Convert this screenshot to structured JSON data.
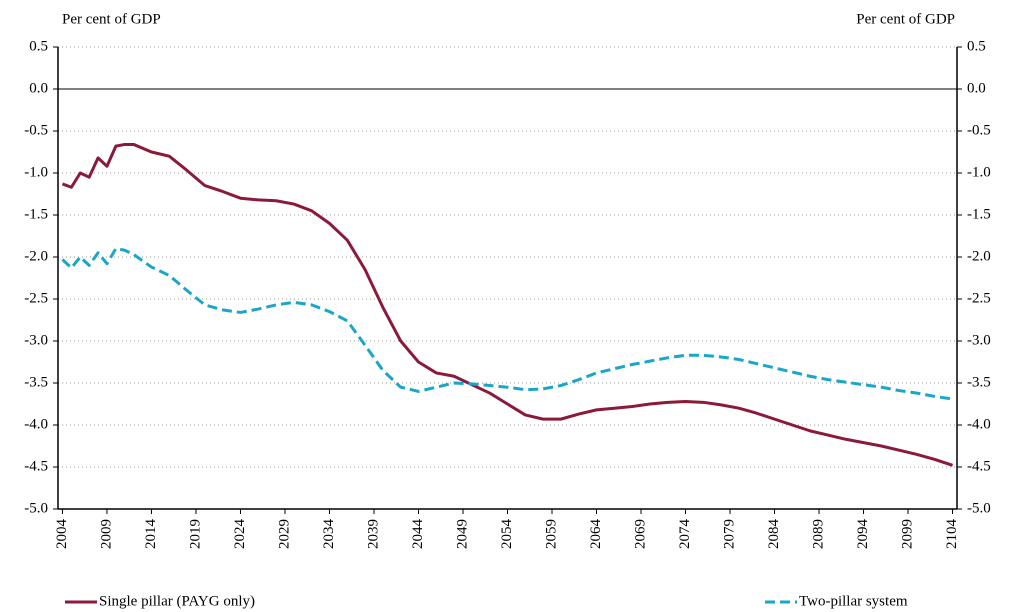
{
  "chart_data": {
    "type": "line",
    "y_label": "Per cent of GDP",
    "y2_label": "Per cent of GDP",
    "x": [
      2004,
      2005,
      2006,
      2007,
      2008,
      2009,
      2010,
      2011,
      2012,
      2014,
      2016,
      2018,
      2020,
      2022,
      2024,
      2026,
      2028,
      2030,
      2032,
      2034,
      2036,
      2038,
      2040,
      2042,
      2044,
      2046,
      2048,
      2050,
      2052,
      2054,
      2056,
      2058,
      2060,
      2062,
      2064,
      2066,
      2068,
      2070,
      2072,
      2074,
      2076,
      2078,
      2080,
      2082,
      2084,
      2086,
      2088,
      2090,
      2092,
      2094,
      2096,
      2098,
      2100,
      2102,
      2104
    ],
    "series": [
      {
        "name": "Single pillar (PAYG only)",
        "color": "#8b1a3a",
        "dash": false,
        "values": [
          -1.13,
          -1.17,
          -1.0,
          -1.05,
          -0.82,
          -0.92,
          -0.68,
          -0.66,
          -0.66,
          -0.75,
          -0.8,
          -0.97,
          -1.15,
          -1.22,
          -1.3,
          -1.32,
          -1.33,
          -1.37,
          -1.45,
          -1.6,
          -1.8,
          -2.15,
          -2.6,
          -3.0,
          -3.25,
          -3.38,
          -3.42,
          -3.52,
          -3.62,
          -3.75,
          -3.88,
          -3.93,
          -3.93,
          -3.87,
          -3.82,
          -3.8,
          -3.78,
          -3.75,
          -3.73,
          -3.72,
          -3.73,
          -3.76,
          -3.8,
          -3.86,
          -3.93,
          -4.0,
          -4.07,
          -4.12,
          -4.17,
          -4.21,
          -4.25,
          -4.3,
          -4.35,
          -4.41,
          -4.48
        ]
      },
      {
        "name": "Two-pillar system",
        "color": "#1aa6c8",
        "dash": true,
        "values": [
          -2.03,
          -2.13,
          -2.0,
          -2.1,
          -1.95,
          -2.08,
          -1.9,
          -1.92,
          -1.97,
          -2.12,
          -2.22,
          -2.4,
          -2.57,
          -2.63,
          -2.66,
          -2.62,
          -2.57,
          -2.54,
          -2.57,
          -2.65,
          -2.76,
          -3.05,
          -3.35,
          -3.55,
          -3.6,
          -3.55,
          -3.5,
          -3.51,
          -3.53,
          -3.55,
          -3.58,
          -3.57,
          -3.53,
          -3.46,
          -3.38,
          -3.33,
          -3.28,
          -3.24,
          -3.2,
          -3.17,
          -3.17,
          -3.19,
          -3.22,
          -3.27,
          -3.32,
          -3.37,
          -3.42,
          -3.46,
          -3.49,
          -3.52,
          -3.55,
          -3.59,
          -3.62,
          -3.66,
          -3.69
        ]
      }
    ],
    "xlim": [
      2003.5,
      2104.5
    ],
    "xticks": [
      2004,
      2009,
      2014,
      2019,
      2024,
      2029,
      2034,
      2039,
      2044,
      2049,
      2054,
      2059,
      2064,
      2069,
      2074,
      2079,
      2084,
      2089,
      2094,
      2099,
      2104
    ],
    "ylim": [
      -5,
      0.5
    ],
    "yticks": [
      0.5,
      {
        "value": 0,
        "label": "0.0"
      },
      -0.5,
      {
        "value": -1,
        "label": "-1.0"
      },
      -1.5,
      {
        "value": -2,
        "label": "-2.0"
      },
      -2.5,
      {
        "value": -3,
        "label": "-3.0"
      },
      -3.5,
      {
        "value": -4,
        "label": "-4.0"
      },
      -4.5,
      {
        "value": -5,
        "label": "-5.0"
      }
    ],
    "y2lim": [
      -5,
      0.5
    ],
    "y2ticks": [
      0.5,
      {
        "value": 0,
        "label": "0.0"
      },
      -0.5,
      {
        "value": -1,
        "label": "-1.0"
      },
      -1.5,
      {
        "value": -2,
        "label": "-2.0"
      },
      -2.5,
      {
        "value": -3,
        "label": "-3.0"
      },
      -3.5,
      {
        "value": -4,
        "label": "-4.0"
      },
      -4.5,
      {
        "value": -5,
        "label": "-5.0"
      }
    ],
    "grid": true,
    "legend": "bottom"
  }
}
